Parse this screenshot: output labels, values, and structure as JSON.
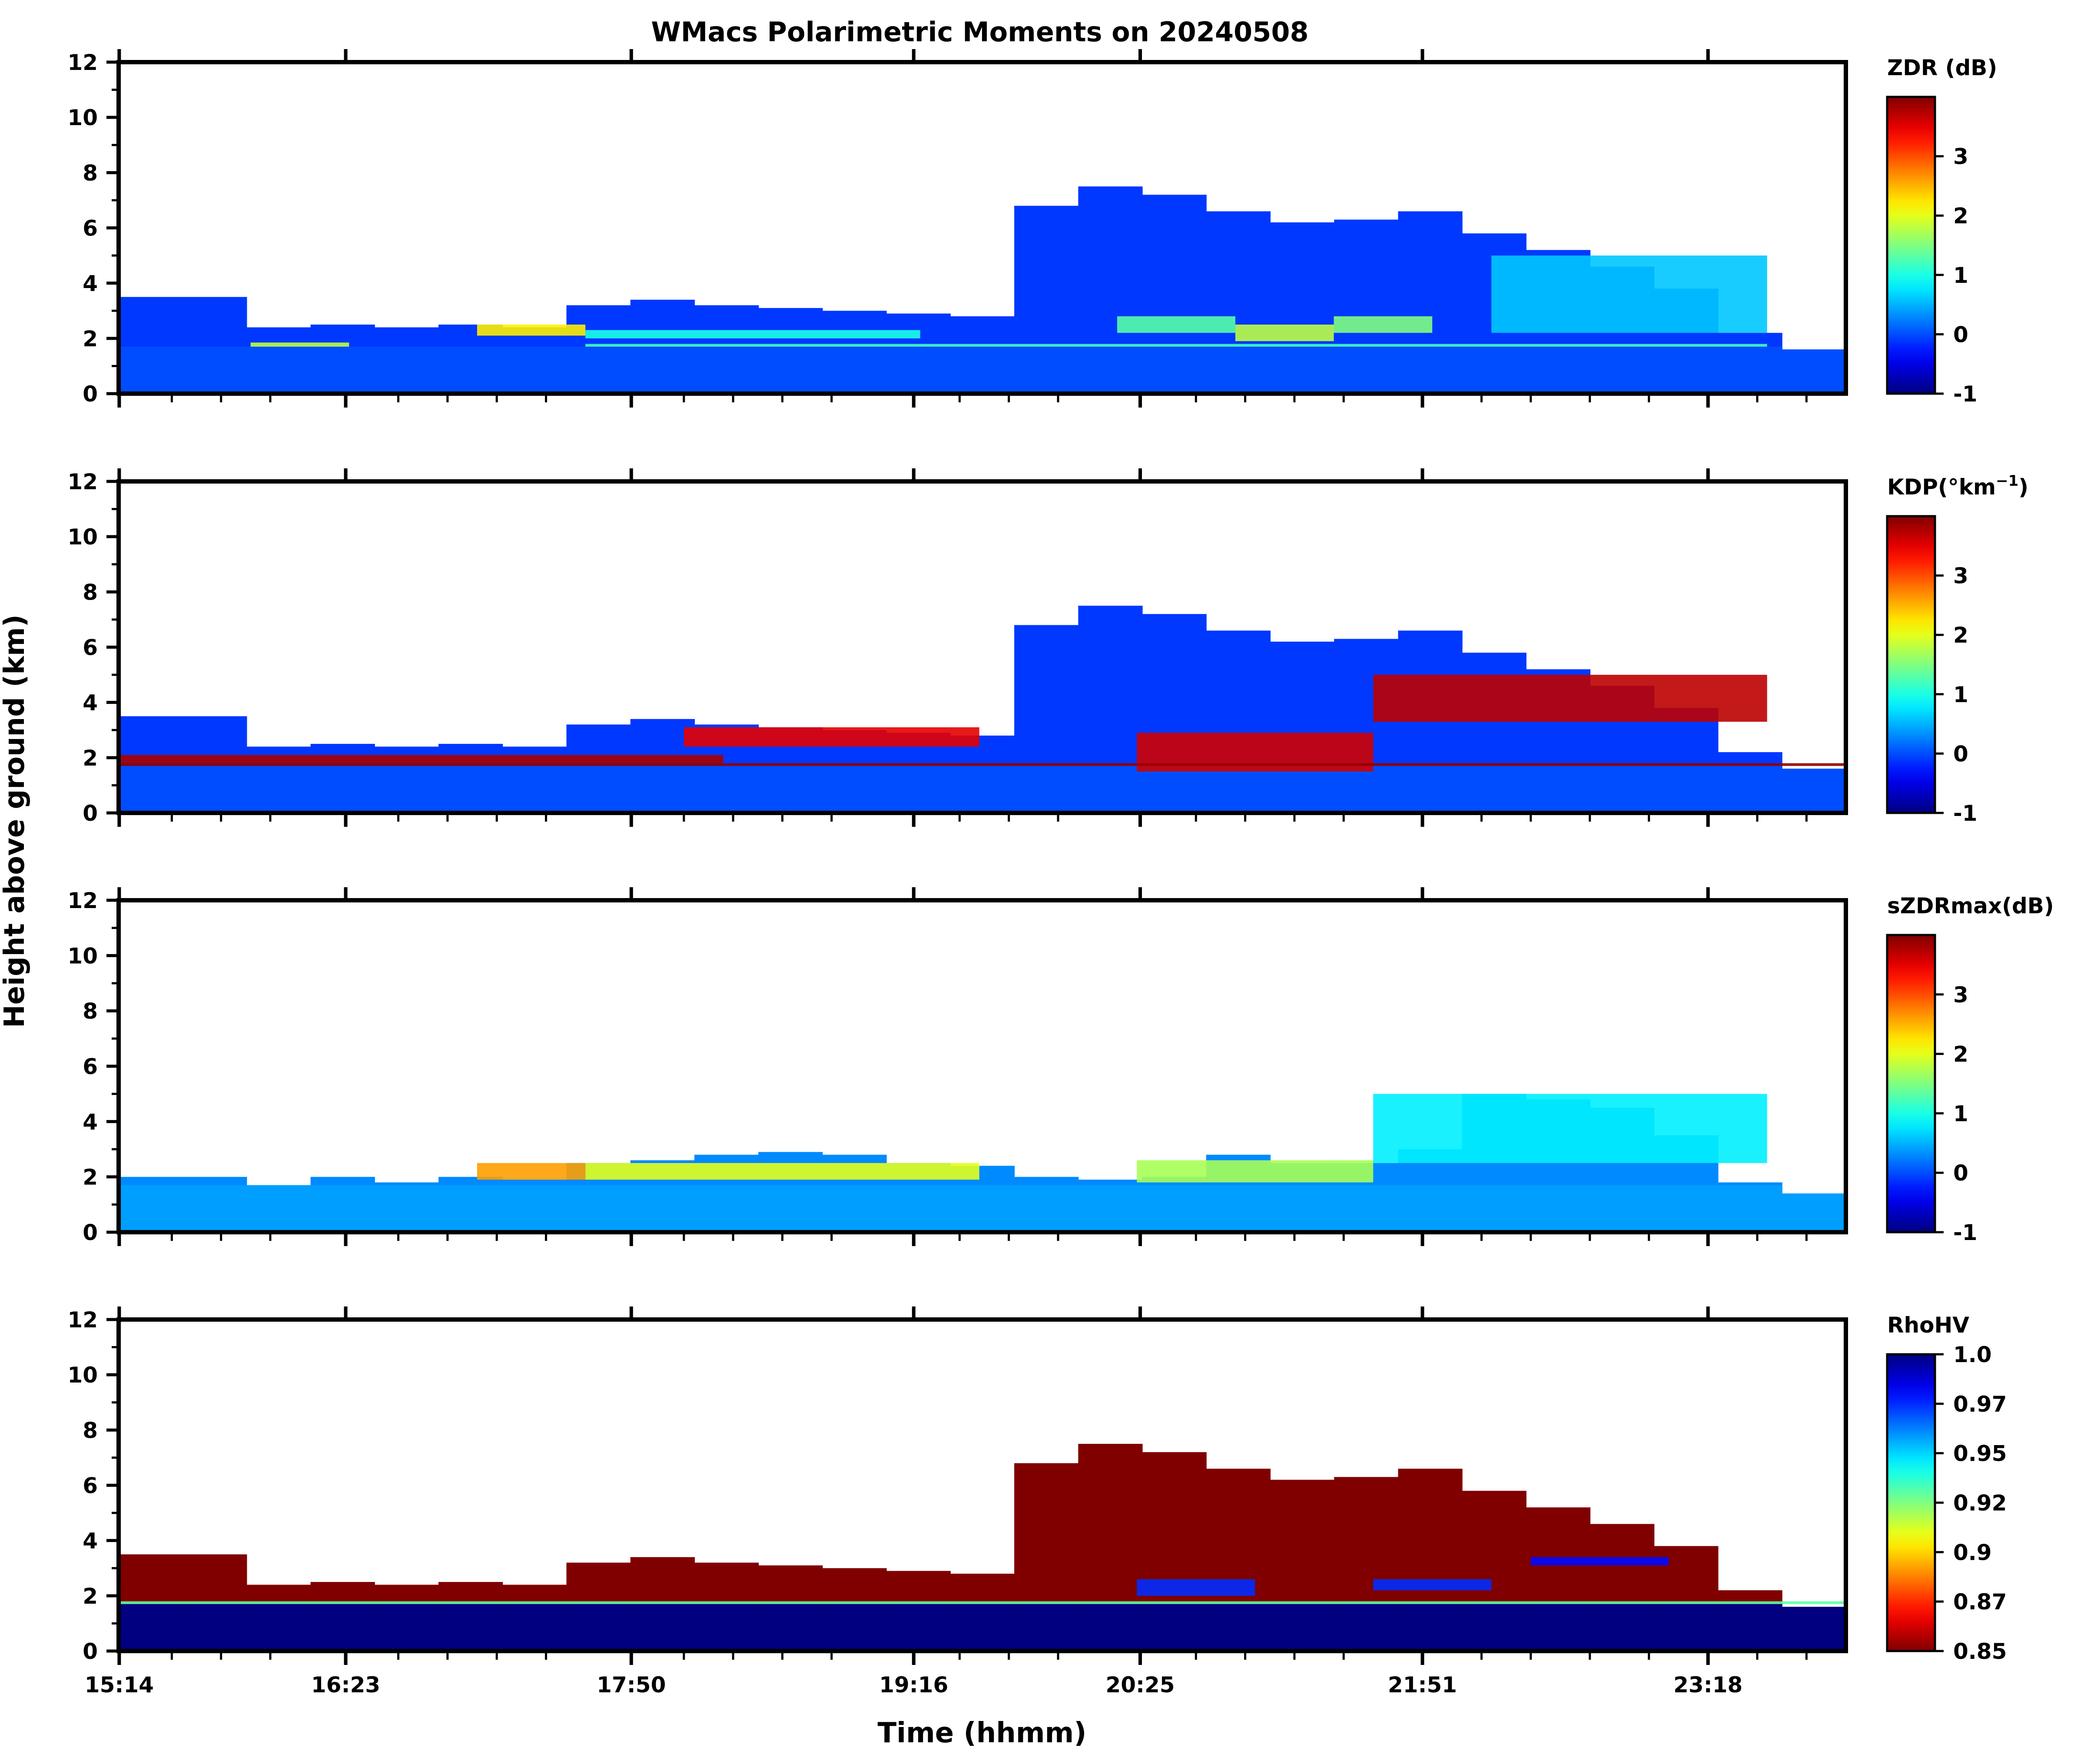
{
  "figure": {
    "title": "WMacs Polarimetric Moments on 20240508",
    "xlabel": "Time (hhmm)",
    "ylabel": "Height above ground (km)"
  },
  "chart_data": [
    {
      "type": "heatmap",
      "variable": "ZDR",
      "colorbar_label": "ZDR (dB)",
      "colormap": "jet",
      "clim": [
        -1,
        4
      ],
      "colorbar_ticks": [
        "-1",
        "0",
        "1",
        "2",
        "3"
      ],
      "colorbar_tick_values": [
        -1,
        0,
        1,
        2,
        3
      ],
      "yticks": [
        "0",
        "2",
        "4",
        "6",
        "8",
        "10",
        "12"
      ],
      "ylim": [
        0,
        12
      ],
      "xticklabels_visible": false,
      "cloud_top_km": [
        3.5,
        3.5,
        2.4,
        2.5,
        2.4,
        2.5,
        2.4,
        3.2,
        3.4,
        3.2,
        3.1,
        3.0,
        2.9,
        2.8,
        6.8,
        7.5,
        7.2,
        6.6,
        6.2,
        6.3,
        6.6,
        5.8,
        5.2,
        4.6,
        3.8,
        2.2,
        1.6
      ],
      "features": [
        {
          "t0": 17.05,
          "t1": 17.6,
          "h0": 2.1,
          "h1": 2.5,
          "value": 2.2
        },
        {
          "t0": 15.9,
          "t1": 16.4,
          "h0": 1.7,
          "h1": 1.85,
          "value": 1.8
        },
        {
          "t0": 17.6,
          "t1": 19.3,
          "h0": 2.0,
          "h1": 2.3,
          "value": 1.0
        },
        {
          "t0": 20.3,
          "t1": 20.9,
          "h0": 2.2,
          "h1": 2.8,
          "value": 1.3
        },
        {
          "t0": 20.9,
          "t1": 21.4,
          "h0": 1.9,
          "h1": 2.5,
          "value": 1.8
        },
        {
          "t0": 21.4,
          "t1": 21.9,
          "h0": 2.2,
          "h1": 2.8,
          "value": 1.5
        },
        {
          "t0": 22.2,
          "t1": 23.6,
          "h0": 2.2,
          "h1": 5.0,
          "value": 0.6
        },
        {
          "t0": 17.6,
          "t1": 23.6,
          "h0": 1.7,
          "h1": 1.8,
          "value": 1.2
        }
      ]
    },
    {
      "type": "heatmap",
      "variable": "KDP",
      "colorbar_label": "KDP(°km",
      "colorbar_label_sup": "−1",
      "colorbar_label_end": ")",
      "colormap": "jet",
      "clim": [
        -1,
        4
      ],
      "colorbar_ticks": [
        "-1",
        "0",
        "1",
        "2",
        "3"
      ],
      "colorbar_tick_values": [
        -1,
        0,
        1,
        2,
        3
      ],
      "yticks": [
        "0",
        "2",
        "4",
        "6",
        "8",
        "10",
        "12"
      ],
      "ylim": [
        0,
        12
      ],
      "xticklabels_visible": false,
      "cloud_top_km": [
        3.5,
        3.5,
        2.4,
        2.5,
        2.4,
        2.5,
        2.4,
        3.2,
        3.4,
        3.2,
        3.1,
        3.0,
        2.9,
        2.8,
        6.8,
        7.5,
        7.2,
        6.6,
        6.2,
        6.3,
        6.6,
        5.8,
        5.2,
        4.6,
        3.8,
        2.2,
        1.6
      ],
      "features": [
        {
          "t0": 15.23,
          "t1": 18.3,
          "h0": 1.8,
          "h1": 2.1,
          "value": 3.8
        },
        {
          "t0": 18.1,
          "t1": 19.6,
          "h0": 2.4,
          "h1": 3.1,
          "value": 3.5
        },
        {
          "t0": 20.4,
          "t1": 21.6,
          "h0": 1.5,
          "h1": 2.9,
          "value": 3.6
        },
        {
          "t0": 21.6,
          "t1": 23.6,
          "h0": 3.3,
          "h1": 5.0,
          "value": 3.7
        },
        {
          "t0": 15.23,
          "t1": 24.0,
          "h0": 1.7,
          "h1": 1.8,
          "value": 3.9
        }
      ]
    },
    {
      "type": "heatmap",
      "variable": "sZDRmax",
      "colorbar_label": "sZDRmax(dB)",
      "colormap": "jet",
      "clim": [
        -1,
        4
      ],
      "colorbar_ticks": [
        "-1",
        "0",
        "1",
        "2",
        "3"
      ],
      "colorbar_tick_values": [
        -1,
        0,
        1,
        2,
        3
      ],
      "yticks": [
        "0",
        "2",
        "4",
        "6",
        "8",
        "10",
        "12"
      ],
      "ylim": [
        0,
        12
      ],
      "xticklabels_visible": false,
      "cloud_top_km": [
        2.0,
        2.0,
        1.7,
        2.0,
        1.8,
        2.0,
        1.9,
        2.5,
        2.6,
        2.8,
        2.9,
        2.8,
        2.5,
        2.4,
        2.0,
        1.9,
        2.0,
        2.8,
        2.5,
        2.5,
        3.0,
        5.0,
        4.8,
        4.5,
        3.5,
        1.8,
        1.4
      ],
      "features": [
        {
          "t0": 17.05,
          "t1": 17.6,
          "h0": 1.9,
          "h1": 2.5,
          "value": 2.6
        },
        {
          "t0": 17.6,
          "t1": 19.6,
          "h0": 1.9,
          "h1": 2.5,
          "value": 2.0
        },
        {
          "t0": 20.4,
          "t1": 21.6,
          "h0": 1.8,
          "h1": 2.6,
          "value": 1.7
        },
        {
          "t0": 21.6,
          "t1": 23.6,
          "h0": 2.5,
          "h1": 5.0,
          "value": 0.8
        }
      ]
    },
    {
      "type": "heatmap",
      "variable": "RhoHV",
      "colorbar_label": "RhoHV",
      "colormap": "jet_r",
      "clim": [
        0.85,
        1.0
      ],
      "colorbar_ticks": [
        "0.85",
        "0.87",
        "0.9",
        "0.92",
        "0.95",
        "0.97",
        "1.0"
      ],
      "colorbar_tick_values": [
        0.85,
        0.875,
        0.9,
        0.925,
        0.95,
        0.975,
        1.0
      ],
      "yticks": [
        "0",
        "2",
        "4",
        "6",
        "8",
        "10",
        "12"
      ],
      "ylim": [
        0,
        12
      ],
      "xticklabels_visible": true,
      "cloud_top_km": [
        3.5,
        3.5,
        2.4,
        2.5,
        2.4,
        2.5,
        2.4,
        3.2,
        3.4,
        3.2,
        3.1,
        3.0,
        2.9,
        2.8,
        6.8,
        7.5,
        7.2,
        6.6,
        6.2,
        6.3,
        6.6,
        5.8,
        5.2,
        4.6,
        3.8,
        2.2,
        1.6
      ],
      "features": [
        {
          "t0": 20.4,
          "t1": 21.0,
          "h0": 2.0,
          "h1": 2.6,
          "value": 0.975
        },
        {
          "t0": 21.6,
          "t1": 22.2,
          "h0": 2.2,
          "h1": 2.6,
          "value": 0.975
        },
        {
          "t0": 22.4,
          "t1": 23.1,
          "h0": 3.1,
          "h1": 3.4,
          "value": 0.98
        },
        {
          "t0": 15.23,
          "t1": 24.0,
          "h0": 1.7,
          "h1": 1.8,
          "value": 0.93
        }
      ]
    }
  ],
  "time_axis": {
    "tmin": 15.23,
    "tmax": 24.0,
    "major_ticks": [
      {
        "label": "15:14",
        "t": 15.233
      },
      {
        "label": "16:23",
        "t": 16.383
      },
      {
        "label": "17:50",
        "t": 17.833
      },
      {
        "label": "19:16",
        "t": 19.267
      },
      {
        "label": "20:25",
        "t": 20.417
      },
      {
        "label": "21:51",
        "t": 21.85
      },
      {
        "label": "23:18",
        "t": 23.3
      }
    ],
    "minor_ticks": [
      15.5,
      15.75,
      16.0,
      16.65,
      16.9,
      17.15,
      17.4,
      18.1,
      18.35,
      18.6,
      18.85,
      19.5,
      19.75,
      20.0,
      20.7,
      20.95,
      21.2,
      21.45,
      22.15,
      22.4,
      22.7,
      23.0,
      23.55,
      23.8
    ]
  },
  "colors": {
    "background": "#ffffff",
    "axes": "#000000",
    "cloud_fill": "#1a5cff"
  }
}
